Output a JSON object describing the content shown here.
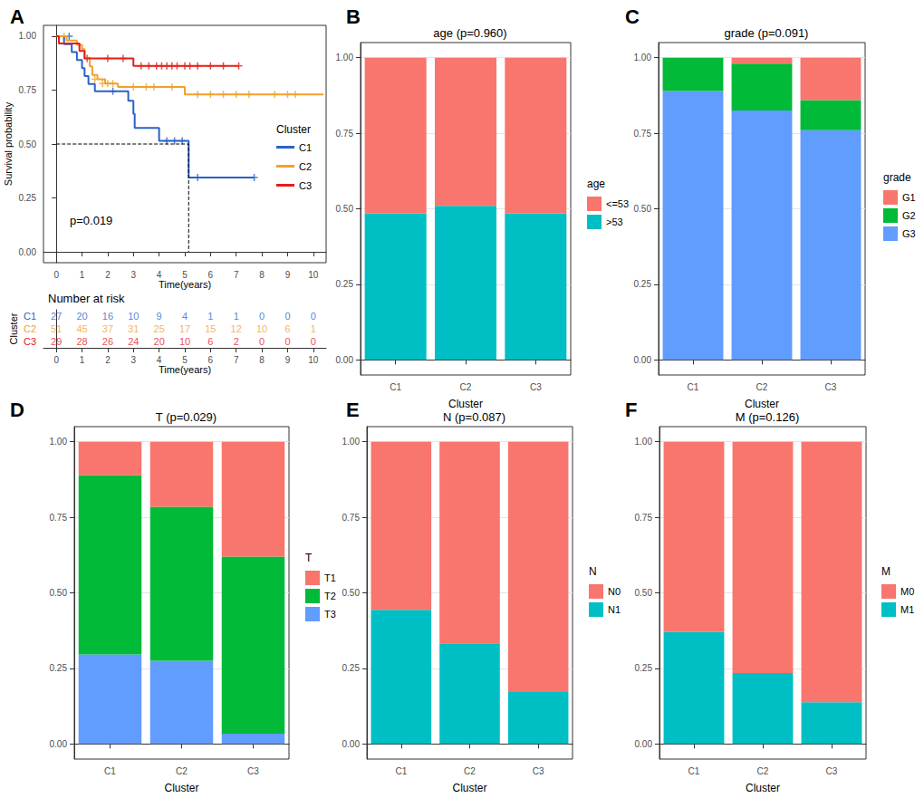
{
  "chart_data": [
    {
      "panel": "A",
      "type": "survival",
      "x_label": "Time(years)",
      "y_label": "Survival probability",
      "xlim": [
        -0.5,
        10.5
      ],
      "xticks": [
        0,
        1,
        2,
        3,
        4,
        5,
        6,
        7,
        8,
        9,
        10
      ],
      "ylim": [
        -0.05,
        1.05
      ],
      "yticks": [
        {
          "value": 0,
          "label": "0.00"
        },
        {
          "value": 0.25,
          "label": "0.25"
        },
        {
          "value": 0.5,
          "label": "0.50"
        },
        {
          "value": 0.75,
          "label": "0.75"
        },
        {
          "value": 1,
          "label": "1.00"
        }
      ],
      "grid": false,
      "legend": "right",
      "legend_title": "Cluster",
      "annotation": "p=0.019",
      "median_line": {
        "x": 5.15,
        "y": 0.5,
        "line_style": "dashed"
      },
      "series": [
        {
          "name": "C1",
          "color": "#2A62C9",
          "marker": "plus",
          "values": [
            [
              0,
              1
            ],
            [
              0.3,
              0.963
            ],
            [
              0.6,
              0.926
            ],
            [
              0.8,
              0.889
            ],
            [
              1.0,
              0.852
            ],
            [
              1.1,
              0.815
            ],
            [
              1.25,
              0.778
            ],
            [
              1.5,
              0.745
            ],
            [
              2.8,
              0.7
            ],
            [
              3.0,
              0.64
            ],
            [
              3.05,
              0.575
            ],
            [
              4.0,
              0.515
            ],
            [
              5.15,
              0.345
            ],
            [
              7.7,
              0.345
            ]
          ],
          "censored": [
            [
              0.5,
              1
            ],
            [
              2.2,
              0.745
            ],
            [
              4.3,
              0.515
            ],
            [
              4.6,
              0.515
            ],
            [
              4.9,
              0.515
            ],
            [
              5.5,
              0.345
            ],
            [
              7.7,
              0.345
            ]
          ]
        },
        {
          "name": "C2",
          "color": "#F2A02D",
          "marker": "plus",
          "values": [
            [
              0,
              1
            ],
            [
              0.4,
              0.98
            ],
            [
              0.8,
              0.96
            ],
            [
              1.0,
              0.94
            ],
            [
              1.1,
              0.9
            ],
            [
              1.3,
              0.86
            ],
            [
              1.4,
              0.82
            ],
            [
              1.6,
              0.8
            ],
            [
              1.9,
              0.78
            ],
            [
              2.4,
              0.765
            ],
            [
              5.0,
              0.73
            ],
            [
              10.4,
              0.73
            ]
          ],
          "censored": [
            [
              0.3,
              1
            ],
            [
              1.5,
              0.8
            ],
            [
              1.8,
              0.78
            ],
            [
              2.0,
              0.78
            ],
            [
              2.2,
              0.78
            ],
            [
              3.0,
              0.765
            ],
            [
              3.5,
              0.765
            ],
            [
              3.8,
              0.765
            ],
            [
              4.5,
              0.765
            ],
            [
              5.5,
              0.73
            ],
            [
              6.0,
              0.73
            ],
            [
              6.5,
              0.73
            ],
            [
              7.0,
              0.73
            ],
            [
              7.5,
              0.73
            ],
            [
              8.5,
              0.73
            ],
            [
              9.0,
              0.73
            ],
            [
              9.3,
              0.73
            ]
          ]
        },
        {
          "name": "C3",
          "color": "#E3201B",
          "marker": "plus",
          "values": [
            [
              0,
              1
            ],
            [
              0.1,
              0.966
            ],
            [
              0.9,
              0.931
            ],
            [
              1.1,
              0.897
            ],
            [
              3.0,
              0.862
            ],
            [
              7.1,
              0.862
            ]
          ],
          "censored": [
            [
              1.2,
              0.897
            ],
            [
              2.0,
              0.897
            ],
            [
              2.6,
              0.897
            ],
            [
              3.3,
              0.862
            ],
            [
              3.6,
              0.862
            ],
            [
              3.9,
              0.862
            ],
            [
              4.1,
              0.862
            ],
            [
              4.3,
              0.862
            ],
            [
              4.5,
              0.862
            ],
            [
              4.7,
              0.862
            ],
            [
              5.0,
              0.862
            ],
            [
              5.2,
              0.862
            ],
            [
              5.5,
              0.862
            ],
            [
              6.0,
              0.862
            ],
            [
              6.5,
              0.862
            ],
            [
              7.1,
              0.862
            ]
          ]
        }
      ],
      "risk_table": {
        "title": "Number at risk",
        "x_label": "Time(years)",
        "y_label": "Cluster",
        "times": [
          0,
          1,
          2,
          3,
          4,
          5,
          6,
          7,
          8,
          9,
          10
        ],
        "rows": [
          {
            "name": "C1",
            "values": [
              27,
              20,
              16,
              10,
              9,
              4,
              1,
              1,
              0,
              0,
              0
            ]
          },
          {
            "name": "C2",
            "values": [
              51,
              45,
              37,
              31,
              25,
              17,
              15,
              12,
              10,
              6,
              1
            ]
          },
          {
            "name": "C3",
            "values": [
              29,
              28,
              26,
              24,
              20,
              10,
              6,
              2,
              0,
              0,
              0
            ]
          }
        ]
      }
    },
    {
      "panel": "B",
      "type": "bar",
      "stacked": true,
      "title": "age (p=0.960)",
      "x_label": "Cluster",
      "categories": [
        "C1",
        "C2",
        "C3"
      ],
      "ylim": [
        -0.05,
        1.05
      ],
      "yticks": [
        {
          "value": 0,
          "label": "0.00"
        },
        {
          "value": 0.25,
          "label": "0.25"
        },
        {
          "value": 0.5,
          "label": "0.50"
        },
        {
          "value": 0.75,
          "label": "0.75"
        },
        {
          "value": 1,
          "label": "1.00"
        }
      ],
      "grid": true,
      "legend": "right",
      "legend_title": "age",
      "series": [
        {
          "name": "<=53",
          "color": "#F8766D",
          "values": [
            0.515,
            0.49,
            0.515
          ]
        },
        {
          "name": ">53",
          "color": "#00BFC4",
          "values": [
            0.485,
            0.51,
            0.485
          ]
        }
      ]
    },
    {
      "panel": "C",
      "type": "bar",
      "stacked": true,
      "title": "grade (p=0.091)",
      "x_label": "Cluster",
      "categories": [
        "C1",
        "C2",
        "C3"
      ],
      "ylim": [
        -0.05,
        1.05
      ],
      "yticks": [
        {
          "value": 0,
          "label": "0.00"
        },
        {
          "value": 0.25,
          "label": "0.25"
        },
        {
          "value": 0.5,
          "label": "0.50"
        },
        {
          "value": 0.75,
          "label": "0.75"
        },
        {
          "value": 1,
          "label": "1.00"
        }
      ],
      "grid": true,
      "legend": "right",
      "legend_title": "grade",
      "series": [
        {
          "name": "G1",
          "color": "#F8766D",
          "values": [
            0,
            0.02,
            0.14
          ]
        },
        {
          "name": "G2",
          "color": "#00BA38",
          "values": [
            0.11,
            0.155,
            0.1
          ]
        },
        {
          "name": "G3",
          "color": "#619CFF",
          "values": [
            0.89,
            0.825,
            0.76
          ]
        }
      ]
    },
    {
      "panel": "D",
      "type": "bar",
      "stacked": true,
      "title": "T (p=0.029)",
      "x_label": "Cluster",
      "categories": [
        "C1",
        "C2",
        "C3"
      ],
      "ylim": [
        -0.05,
        1.05
      ],
      "yticks": [
        {
          "value": 0,
          "label": "0.00"
        },
        {
          "value": 0.25,
          "label": "0.25"
        },
        {
          "value": 0.5,
          "label": "0.50"
        },
        {
          "value": 0.75,
          "label": "0.75"
        },
        {
          "value": 1,
          "label": "1.00"
        }
      ],
      "grid": true,
      "legend": "right",
      "legend_title": "T",
      "series": [
        {
          "name": "T1",
          "color": "#F8766D",
          "values": [
            0.111,
            0.215,
            0.38
          ]
        },
        {
          "name": "T2",
          "color": "#00BA38",
          "values": [
            0.593,
            0.51,
            0.586
          ]
        },
        {
          "name": "T3",
          "color": "#619CFF",
          "values": [
            0.296,
            0.275,
            0.034
          ]
        }
      ]
    },
    {
      "panel": "E",
      "type": "bar",
      "stacked": true,
      "title": "N (p=0.087)",
      "x_label": "Cluster",
      "categories": [
        "C1",
        "C2",
        "C3"
      ],
      "ylim": [
        -0.05,
        1.05
      ],
      "yticks": [
        {
          "value": 0,
          "label": "0.00"
        },
        {
          "value": 0.25,
          "label": "0.25"
        },
        {
          "value": 0.5,
          "label": "0.50"
        },
        {
          "value": 0.75,
          "label": "0.75"
        },
        {
          "value": 1,
          "label": "1.00"
        }
      ],
      "grid": true,
      "legend": "right",
      "legend_title": "N",
      "series": [
        {
          "name": "N0",
          "color": "#F8766D",
          "values": [
            0.556,
            0.667,
            0.828
          ]
        },
        {
          "name": "N1",
          "color": "#00BFC4",
          "values": [
            0.444,
            0.333,
            0.172
          ]
        }
      ]
    },
    {
      "panel": "F",
      "type": "bar",
      "stacked": true,
      "title": "M (p=0.126)",
      "x_label": "Cluster",
      "categories": [
        "C1",
        "C2",
        "C3"
      ],
      "ylim": [
        -0.05,
        1.05
      ],
      "yticks": [
        {
          "value": 0,
          "label": "0.00"
        },
        {
          "value": 0.25,
          "label": "0.25"
        },
        {
          "value": 0.5,
          "label": "0.50"
        },
        {
          "value": 0.75,
          "label": "0.75"
        },
        {
          "value": 1,
          "label": "1.00"
        }
      ],
      "grid": true,
      "legend": "right",
      "legend_title": "M",
      "series": [
        {
          "name": "M0",
          "color": "#F8766D",
          "values": [
            0.63,
            0.765,
            0.862
          ]
        },
        {
          "name": "M1",
          "color": "#00BFC4",
          "values": [
            0.37,
            0.235,
            0.138
          ]
        }
      ]
    }
  ]
}
